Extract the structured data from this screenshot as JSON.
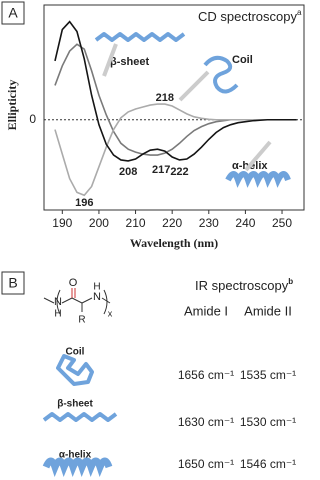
{
  "chart_data": {
    "type": "line",
    "panel_label": "A",
    "title": "CD spectroscopy",
    "title_note": "a",
    "xlabel": "Wavelength (nm)",
    "ylabel": "Ellipticity",
    "xlim": [
      185,
      256
    ],
    "xticks": [
      190,
      200,
      210,
      220,
      230,
      240,
      250
    ],
    "ylim": [
      -0.92,
      1.17
    ],
    "yticks": [
      0
    ],
    "x": [
      188,
      190,
      192,
      194,
      196,
      198,
      200,
      202,
      204,
      206,
      208,
      210,
      212,
      214,
      216,
      218,
      220,
      222,
      224,
      226,
      228,
      230,
      232,
      234,
      236,
      238,
      240,
      242,
      244,
      246,
      248,
      250,
      252,
      254
    ],
    "series": [
      {
        "name": "β-sheet",
        "color": "#7a7a7a",
        "values": [
          0.35,
          0.55,
          0.7,
          0.77,
          0.72,
          0.5,
          0.25,
          0.05,
          -0.12,
          -0.24,
          -0.3,
          -0.33,
          -0.35,
          -0.36,
          -0.36,
          -0.34,
          -0.3,
          -0.24,
          -0.17,
          -0.11,
          -0.07,
          -0.04,
          -0.02,
          -0.01,
          0,
          0,
          0,
          0,
          0,
          0,
          0,
          0,
          0,
          0
        ]
      },
      {
        "name": "Coil",
        "color": "#ababab",
        "values": [
          -0.1,
          -0.35,
          -0.6,
          -0.74,
          -0.77,
          -0.68,
          -0.48,
          -0.28,
          -0.1,
          0.02,
          0.08,
          0.11,
          0.13,
          0.15,
          0.16,
          0.16,
          0.14,
          0.1,
          0.06,
          0.03,
          0.015,
          0.005,
          0,
          0,
          0,
          0,
          0,
          0,
          0,
          0,
          0,
          0,
          0,
          0
        ]
      },
      {
        "name": "α-helix",
        "color": "#151515",
        "values": [
          0.6,
          0.92,
          1.0,
          0.9,
          0.62,
          0.25,
          -0.05,
          -0.25,
          -0.36,
          -0.41,
          -0.42,
          -0.4,
          -0.35,
          -0.31,
          -0.3,
          -0.32,
          -0.38,
          -0.41,
          -0.4,
          -0.35,
          -0.28,
          -0.2,
          -0.13,
          -0.08,
          -0.05,
          -0.03,
          -0.02,
          -0.01,
          -0.005,
          0,
          0,
          0,
          0,
          0
        ]
      }
    ],
    "peak_labels": [
      196,
      208,
      217,
      222,
      218
    ]
  },
  "ir_panel": {
    "panel_label": "B",
    "title": "IR spectroscopy",
    "title_note": "b",
    "structure": {
      "atoms": [
        "O",
        "N",
        "H",
        "N",
        "H",
        "R",
        "x"
      ]
    },
    "table": {
      "columns": [
        "Amide I",
        "Amide II"
      ],
      "rows": [
        [
          "Coil",
          "1656 cm⁻¹",
          "1535 cm⁻¹"
        ],
        [
          "β-sheet",
          "1630 cm⁻¹",
          "1530 cm⁻¹"
        ],
        [
          "α-helix",
          "1650 cm⁻¹",
          "1546 cm⁻¹"
        ]
      ]
    }
  }
}
